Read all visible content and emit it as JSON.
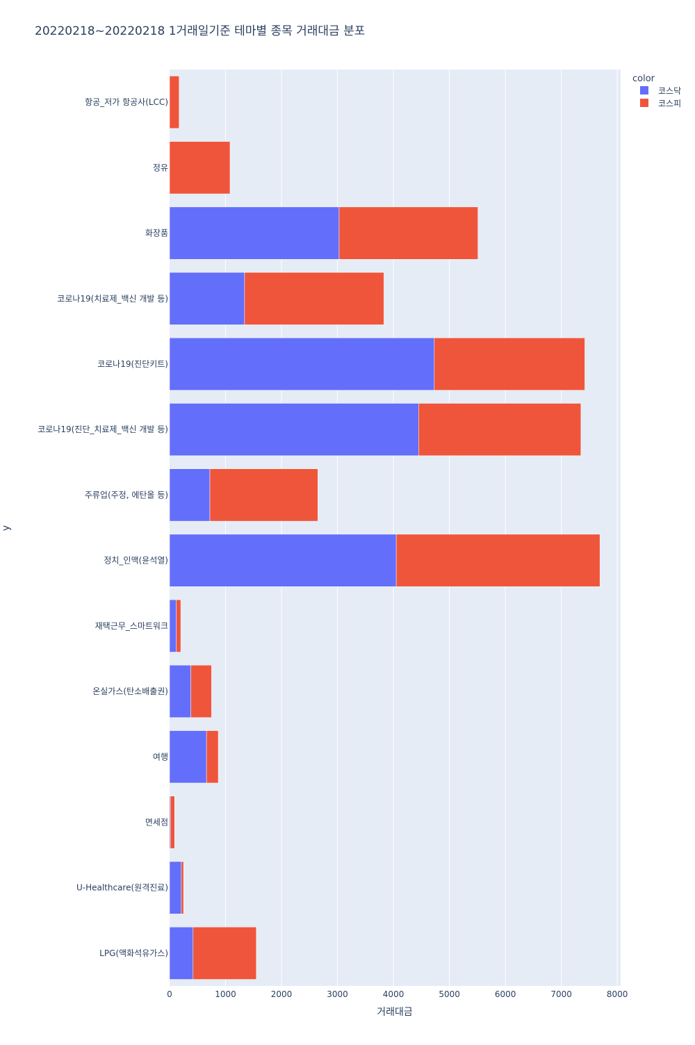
{
  "chart_data": {
    "type": "bar",
    "orientation": "horizontal",
    "barmode": "stack",
    "title": "20220218~20220218 1거래일기준 테마별 종목 거래대금 분포",
    "xlabel": "거래대금",
    "ylabel": "y",
    "xlim": [
      0,
      8060
    ],
    "x_ticks": [
      0,
      1000,
      2000,
      3000,
      4000,
      5000,
      6000,
      7000,
      8000
    ],
    "x_tick_labels": [
      "0",
      "1000",
      "2000",
      "3000",
      "4000",
      "5000",
      "6000",
      "7000",
      "8000"
    ],
    "grid": true,
    "legend_title": "color",
    "legend_position": "top-right",
    "categories": [
      "항공_저가 항공사(LCC)",
      "정유",
      "화장품",
      "코로나19(치료제_백신 개발 등)",
      "코로나19(진단키트)",
      "코로나19(진단_치료제_백신 개발 등)",
      "주류업(주정, 에탄올 등)",
      "정치_인맥(윤석열)",
      "재택근무_스마트워크",
      "온실가스(탄소배출권)",
      "여행",
      "면세점",
      "U-Healthcare(원격진료)",
      "LPG(액화석유가스)"
    ],
    "series": [
      {
        "name": "코스닥",
        "color": "#636efa",
        "values": [
          0,
          0,
          3030,
          1340,
          4730,
          4450,
          720,
          4050,
          120,
          380,
          660,
          15,
          210,
          420
        ]
      },
      {
        "name": "코스피",
        "color": "#ef553b",
        "values": [
          170,
          1080,
          2480,
          2490,
          2690,
          2900,
          1930,
          3640,
          80,
          370,
          210,
          75,
          40,
          1130
        ]
      }
    ]
  },
  "colors": {
    "plot_background": "#e5ecf6",
    "grid": "#ffffff",
    "text": "#2a3f5f"
  }
}
